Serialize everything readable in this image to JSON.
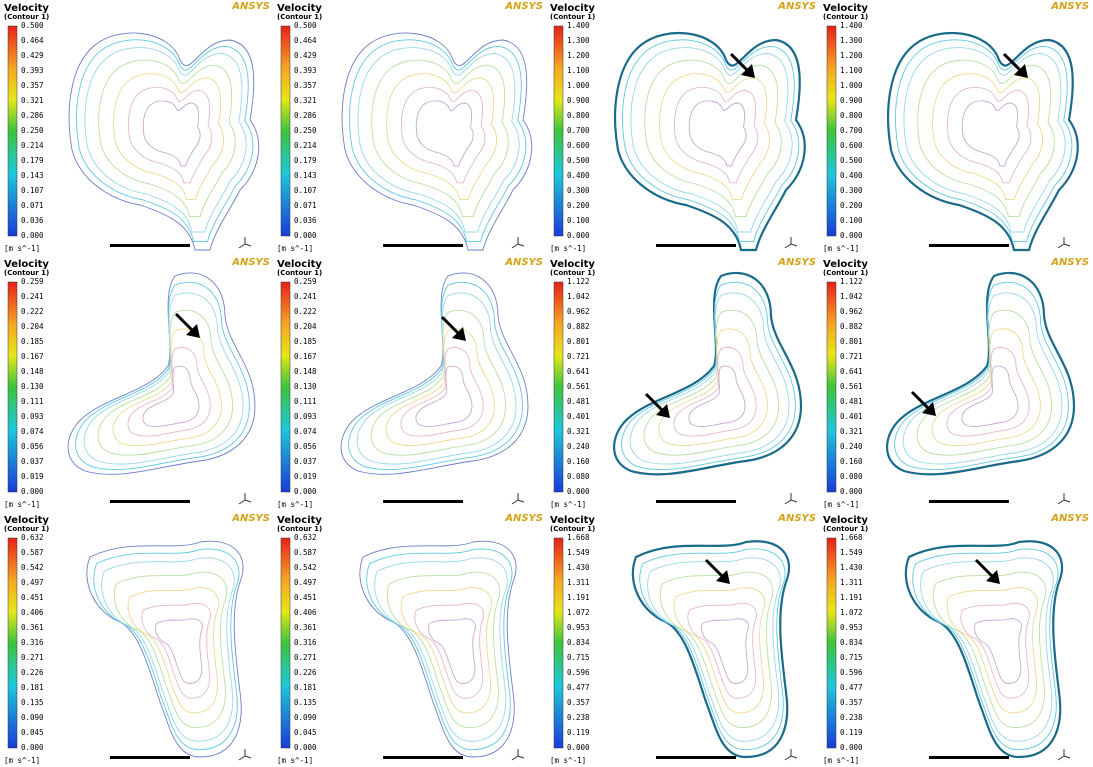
{
  "panels": [
    {
      "title": "Velocity",
      "subtitle": "(Contour 1)",
      "legend_labels": [
        "0.500",
        "0.464",
        "0.429",
        "0.393",
        "0.357",
        "0.321",
        "0.286",
        "0.250",
        "0.214",
        "0.179",
        "0.143",
        "0.107",
        "0.071",
        "0.036",
        "0.000"
      ],
      "unit": "[m s^-1]",
      "logo": "ANSYS"
    },
    {
      "title": "Velocity",
      "subtitle": "(Contour 1)",
      "legend_labels": [
        "0.500",
        "0.464",
        "0.429",
        "0.393",
        "0.357",
        "0.321",
        "0.286",
        "0.250",
        "0.214",
        "0.179",
        "0.143",
        "0.107",
        "0.071",
        "0.036",
        "0.000"
      ],
      "unit": "[m s^-1]",
      "logo": "ANSYS"
    },
    {
      "title": "Velocity",
      "subtitle": "(Contour 1)",
      "legend_labels": [
        "1.400",
        "1.300",
        "1.200",
        "1.100",
        "1.000",
        "0.900",
        "0.800",
        "0.700",
        "0.600",
        "0.500",
        "0.400",
        "0.300",
        "0.200",
        "0.100",
        "0.000"
      ],
      "unit": "[m s^-1]",
      "logo": "ANSYS"
    },
    {
      "title": "Velocity",
      "subtitle": "(Contour 1)",
      "legend_labels": [
        "1.400",
        "1.300",
        "1.200",
        "1.100",
        "1.000",
        "0.900",
        "0.800",
        "0.700",
        "0.600",
        "0.500",
        "0.400",
        "0.300",
        "0.200",
        "0.100",
        "0.000"
      ],
      "unit": "[m s^-1]",
      "logo": "ANSYS"
    },
    {
      "title": "Velocity",
      "subtitle": "(Contour 1)",
      "legend_labels": [
        "0.259",
        "0.241",
        "0.222",
        "0.204",
        "0.185",
        "0.167",
        "0.148",
        "0.130",
        "0.111",
        "0.093",
        "0.074",
        "0.056",
        "0.037",
        "0.019",
        "0.000"
      ],
      "unit": "[m s^-1]",
      "logo": "ANSYS"
    },
    {
      "title": "Velocity",
      "subtitle": "(Contour 1)",
      "legend_labels": [
        "0.259",
        "0.241",
        "0.222",
        "0.204",
        "0.185",
        "0.167",
        "0.148",
        "0.130",
        "0.111",
        "0.093",
        "0.074",
        "0.056",
        "0.037",
        "0.019",
        "0.000"
      ],
      "unit": "[m s^-1]",
      "logo": "ANSYS"
    },
    {
      "title": "Velocity",
      "subtitle": "(Contour 1)",
      "legend_labels": [
        "1.122",
        "1.042",
        "0.962",
        "0.882",
        "0.801",
        "0.721",
        "0.641",
        "0.561",
        "0.481",
        "0.401",
        "0.321",
        "0.240",
        "0.160",
        "0.080",
        "0.000"
      ],
      "unit": "[m s^-1]",
      "logo": "ANSYS"
    },
    {
      "title": "Velocity",
      "subtitle": "(Contour 1)",
      "legend_labels": [
        "1.122",
        "1.042",
        "0.962",
        "0.882",
        "0.801",
        "0.721",
        "0.641",
        "0.561",
        "0.481",
        "0.401",
        "0.321",
        "0.240",
        "0.160",
        "0.080",
        "0.000"
      ],
      "unit": "[m s^-1]",
      "logo": "ANSYS"
    },
    {
      "title": "Velocity",
      "subtitle": "(Contour 1)",
      "legend_labels": [
        "0.632",
        "0.587",
        "0.542",
        "0.497",
        "0.451",
        "0.406",
        "0.361",
        "0.316",
        "0.271",
        "0.226",
        "0.181",
        "0.135",
        "0.090",
        "0.045",
        "0.000"
      ],
      "unit": "[m s^-1]",
      "logo": "ANSYS"
    },
    {
      "title": "Velocity",
      "subtitle": "(Contour 1)",
      "legend_labels": [
        "0.632",
        "0.587",
        "0.542",
        "0.497",
        "0.451",
        "0.406",
        "0.361",
        "0.316",
        "0.271",
        "0.226",
        "0.181",
        "0.135",
        "0.090",
        "0.045",
        "0.000"
      ],
      "unit": "[m s^-1]",
      "logo": "ANSYS"
    },
    {
      "title": "Velocity",
      "subtitle": "(Contour 1)",
      "legend_labels": [
        "1.668",
        "1.549",
        "1.430",
        "1.311",
        "1.191",
        "1.072",
        "0.953",
        "0.834",
        "0.715",
        "0.596",
        "0.477",
        "0.357",
        "0.238",
        "0.119",
        "0.000"
      ],
      "unit": "[m s^-1]",
      "logo": "ANSYS"
    },
    {
      "title": "Velocity",
      "subtitle": "(Contour 1)",
      "legend_labels": [
        "1.668",
        "1.549",
        "1.430",
        "1.311",
        "1.191",
        "1.072",
        "0.953",
        "0.834",
        "0.715",
        "0.596",
        "0.477",
        "0.357",
        "0.238",
        "0.119",
        "0.000"
      ],
      "unit": "[m s^-1]",
      "logo": "ANSYS"
    }
  ]
}
